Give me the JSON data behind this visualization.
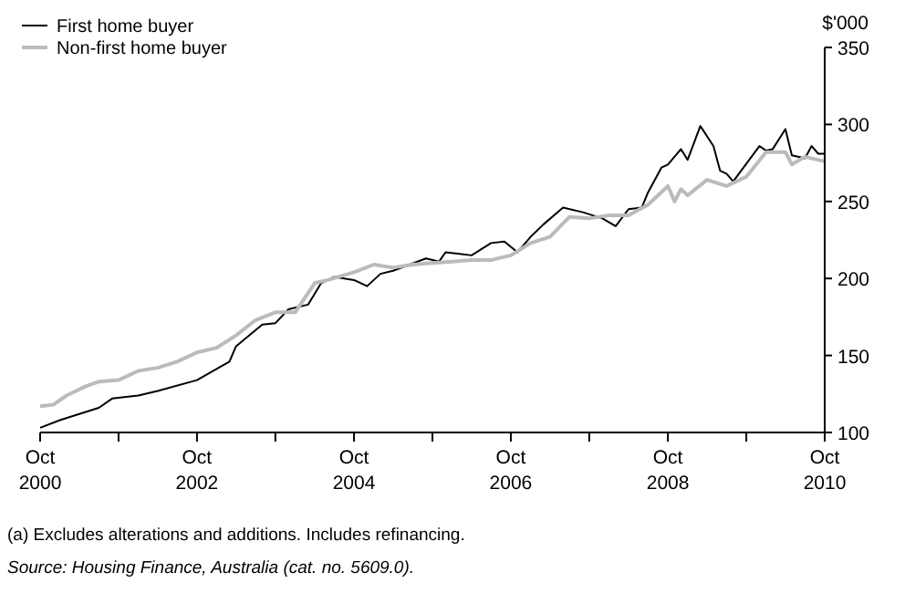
{
  "chart_data": {
    "type": "line",
    "ylabel": "$'000",
    "xlim": [
      "2000-10",
      "2010-10"
    ],
    "ylim": [
      100,
      350
    ],
    "yticks": [
      100,
      150,
      200,
      250,
      300,
      350
    ],
    "xticks": [
      {
        "value": "2000-10",
        "label": "Oct 2000"
      },
      {
        "value": "2001-10",
        "label": null
      },
      {
        "value": "2002-10",
        "label": "Oct 2002"
      },
      {
        "value": "2003-10",
        "label": null
      },
      {
        "value": "2004-10",
        "label": "Oct 2004"
      },
      {
        "value": "2005-10",
        "label": null
      },
      {
        "value": "2006-10",
        "label": "Oct 2006"
      },
      {
        "value": "2007-10",
        "label": null
      },
      {
        "value": "2008-10",
        "label": "Oct 2008"
      },
      {
        "value": "2009-10",
        "label": null
      },
      {
        "value": "2010-10",
        "label": "Oct 2010"
      }
    ],
    "grid": false,
    "legend": "top left",
    "marker": "none",
    "line_style": "solid",
    "series": [
      {
        "name": "First home buyer",
        "color": "#000000",
        "x": [
          "2000-10",
          "2001-01",
          "2001-04",
          "2001-07",
          "2001-09",
          "2002-01",
          "2002-04",
          "2002-10",
          "2003-03",
          "2003-04",
          "2003-08",
          "2003-10",
          "2003-12",
          "2004-03",
          "2004-05",
          "2004-07",
          "2004-10",
          "2004-12",
          "2005-02",
          "2005-04",
          "2005-09",
          "2005-11",
          "2005-12",
          "2006-04",
          "2006-07",
          "2006-09",
          "2006-11",
          "2007-01",
          "2007-03",
          "2007-06",
          "2007-09",
          "2007-12",
          "2008-02",
          "2008-04",
          "2008-06",
          "2008-07",
          "2008-09",
          "2008-10",
          "2008-12",
          "2009-01",
          "2009-03",
          "2009-05",
          "2009-06",
          "2009-07",
          "2009-08",
          "2009-12",
          "2010-01",
          "2010-02",
          "2010-04",
          "2010-05",
          "2010-07",
          "2010-08",
          "2010-09",
          "2010-10"
        ],
        "values": [
          103,
          108,
          112,
          116,
          122,
          124,
          127,
          134,
          146,
          156,
          170,
          171,
          180,
          183,
          197,
          201,
          199,
          195,
          203,
          205,
          213,
          211,
          217,
          215,
          223,
          224,
          217,
          227,
          235,
          246,
          243,
          239,
          234,
          245,
          246,
          256,
          272,
          274,
          284,
          277,
          299,
          286,
          270,
          268,
          263,
          286,
          283,
          284,
          297,
          280,
          278,
          286,
          281,
          281
        ]
      },
      {
        "name": "Non-first home buyer",
        "color": "#bbbbbb",
        "x": [
          "2000-10",
          "2000-12",
          "2001-02",
          "2001-05",
          "2001-07",
          "2001-10",
          "2002-01",
          "2002-04",
          "2002-07",
          "2002-10",
          "2003-01",
          "2003-04",
          "2003-07",
          "2003-10",
          "2004-01",
          "2004-04",
          "2004-06",
          "2004-10",
          "2005-01",
          "2005-04",
          "2005-07",
          "2005-10",
          "2006-01",
          "2006-04",
          "2006-07",
          "2006-10",
          "2007-01",
          "2007-04",
          "2007-07",
          "2007-10",
          "2008-01",
          "2008-04",
          "2008-07",
          "2008-10",
          "2008-11",
          "2008-12",
          "2009-01",
          "2009-04",
          "2009-07",
          "2009-10",
          "2010-01",
          "2010-04",
          "2010-05",
          "2010-07",
          "2010-10"
        ],
        "values": [
          117,
          118,
          124,
          130,
          133,
          134,
          140,
          142,
          146,
          152,
          155,
          163,
          173,
          178,
          178,
          197,
          199,
          204,
          209,
          207,
          209,
          210,
          211,
          212,
          212,
          215,
          223,
          227,
          240,
          239,
          241,
          241,
          248,
          260,
          250,
          258,
          254,
          264,
          260,
          266,
          282,
          282,
          274,
          279,
          276
        ]
      }
    ],
    "annotations": [
      "(a) Excludes alterations and additions. Includes refinancing.",
      "Source: Housing Finance, Australia (cat. no. 5609.0)."
    ]
  }
}
